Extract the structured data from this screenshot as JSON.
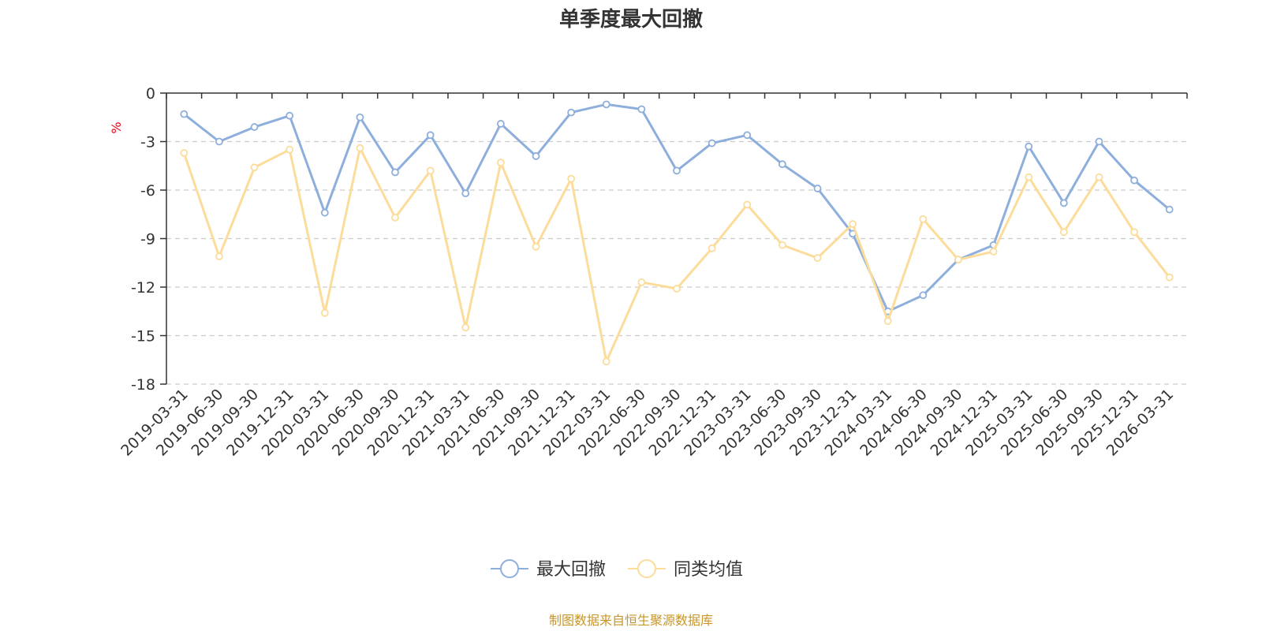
{
  "chart_data": {
    "type": "line",
    "title": "单季度最大回撤",
    "ylabel": "%",
    "xlabel": "",
    "ylim": [
      -18,
      0
    ],
    "yticks": [
      0,
      -3,
      -6,
      -9,
      -12,
      -15,
      -18
    ],
    "grid": true,
    "legend_position": "bottom-center",
    "categories": [
      "2019-03-31",
      "2019-06-30",
      "2019-09-30",
      "2019-12-31",
      "2020-03-31",
      "2020-06-30",
      "2020-09-30",
      "2020-12-31",
      "2021-03-31",
      "2021-06-30",
      "2021-09-30",
      "2021-12-31",
      "2022-03-31",
      "2022-06-30",
      "2022-09-30",
      "2022-12-31",
      "2023-03-31",
      "2023-06-30",
      "2023-09-30",
      "2023-12-31",
      "2024-03-31",
      "2024-06-30",
      "2024-09-30",
      "2024-12-31",
      "2025-03-31",
      "2025-06-30",
      "2025-09-30",
      "2025-12-31",
      "2026-03-31"
    ],
    "series": [
      {
        "name": "最大回撤",
        "color": "#8eaedb",
        "values": [
          -1.3,
          -3.0,
          -2.1,
          -1.4,
          -7.4,
          -1.5,
          -4.9,
          -2.6,
          -6.2,
          -1.9,
          -3.9,
          -1.2,
          -0.7,
          -1.0,
          -4.8,
          -3.1,
          -2.6,
          -4.4,
          -5.9,
          -8.7,
          -13.5,
          -12.5,
          -10.3,
          -9.4,
          -3.3,
          -6.8,
          -3.0,
          -5.4,
          -7.2
        ]
      },
      {
        "name": "同类均值",
        "color": "#fcdc9a",
        "values": [
          -3.7,
          -10.1,
          -4.6,
          -3.5,
          -13.6,
          -3.4,
          -7.7,
          -4.8,
          -14.5,
          -4.3,
          -9.5,
          -5.3,
          -16.6,
          -11.7,
          -12.1,
          -9.6,
          -6.9,
          -9.4,
          -10.2,
          -8.1,
          -14.1,
          -7.8,
          -10.3,
          -9.8,
          -5.2,
          -8.6,
          -5.2,
          -8.6,
          -11.4
        ]
      }
    ]
  },
  "source_text": "制图数据来自恒生聚源数据库"
}
